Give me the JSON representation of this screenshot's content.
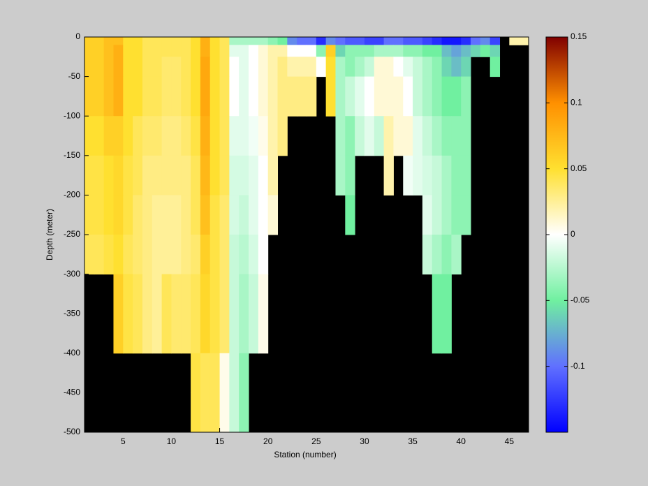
{
  "chart_data": {
    "type": "heatmap",
    "xlabel": "Station (number)",
    "ylabel": "Depth (meter)",
    "xlim": [
      1,
      47
    ],
    "ylim": [
      -500,
      0
    ],
    "xticks": [
      5,
      10,
      15,
      20,
      25,
      30,
      35,
      40,
      45
    ],
    "yticks": [
      -500,
      -450,
      -400,
      -350,
      -300,
      -250,
      -200,
      -150,
      -100,
      -50,
      0
    ],
    "clim": [
      -0.15,
      0.15
    ],
    "cticks": [
      -0.1,
      -0.05,
      0,
      0.05,
      0.1,
      0.15
    ],
    "colormap": [
      "#0000ff",
      "#6070ff",
      "#70f0a0",
      "#ffffff",
      "#ffe030",
      "#ff9000",
      "#800000"
    ],
    "background_color": "#000000",
    "x_edges": [
      1,
      2,
      3,
      4,
      5,
      6,
      7,
      8,
      9,
      10,
      11,
      12,
      13,
      14,
      15,
      16,
      17,
      18,
      19,
      20,
      21,
      22,
      23,
      24,
      25,
      26,
      27,
      28,
      29,
      30,
      31,
      32,
      33,
      34,
      35,
      36,
      37,
      38,
      39,
      40,
      41,
      42,
      43,
      44,
      45,
      46,
      47
    ],
    "y_edges": [
      0,
      -10,
      -25,
      -50,
      -100,
      -150,
      -200,
      -250,
      -300,
      -400,
      -450,
      -500
    ],
    "z": [
      [
        0.06,
        0.06,
        0.07,
        0.07,
        0.05,
        0.05,
        0.04,
        0.04,
        0.04,
        0.04,
        0.04,
        0.05,
        0.08,
        0.05,
        0.04,
        -0.03,
        -0.03,
        -0.03,
        -0.03,
        -0.04,
        -0.05,
        -0.09,
        -0.1,
        -0.1,
        -0.13,
        -0.09,
        -0.1,
        -0.11,
        -0.11,
        -0.12,
        -0.12,
        -0.1,
        -0.1,
        -0.11,
        -0.11,
        -0.12,
        -0.13,
        -0.14,
        -0.14,
        -0.13,
        -0.1,
        -0.09,
        -0.12,
        null,
        0.02,
        0.02
      ],
      [
        0.06,
        0.06,
        0.07,
        0.08,
        0.05,
        0.05,
        0.04,
        0.04,
        0.04,
        0.04,
        0.04,
        0.05,
        0.08,
        0.05,
        0.04,
        -0.01,
        -0.01,
        0.0,
        0.01,
        0.02,
        0.02,
        0.0,
        0.0,
        0.0,
        -0.04,
        0.06,
        -0.06,
        -0.04,
        -0.04,
        -0.04,
        -0.03,
        -0.03,
        -0.03,
        -0.04,
        -0.04,
        -0.05,
        -0.05,
        -0.07,
        -0.08,
        -0.07,
        -0.06,
        -0.05,
        -0.06,
        null,
        null,
        null
      ],
      [
        0.06,
        0.06,
        0.07,
        0.08,
        0.05,
        0.05,
        0.04,
        0.04,
        0.035,
        0.035,
        0.04,
        0.05,
        0.085,
        0.05,
        0.04,
        0.0,
        -0.01,
        0.0,
        0.01,
        0.02,
        0.03,
        0.02,
        0.02,
        0.02,
        0.0,
        0.05,
        -0.03,
        -0.04,
        -0.03,
        -0.02,
        0.01,
        0.01,
        0.0,
        -0.01,
        -0.02,
        -0.03,
        -0.04,
        -0.06,
        -0.07,
        -0.06,
        null,
        null,
        -0.05,
        null,
        null,
        null
      ],
      [
        0.06,
        0.06,
        0.07,
        0.08,
        0.05,
        0.05,
        0.04,
        0.04,
        0.035,
        0.035,
        0.04,
        0.05,
        0.085,
        0.05,
        0.04,
        0.0,
        -0.01,
        0.0,
        0.01,
        0.02,
        0.03,
        0.03,
        0.03,
        0.03,
        null,
        0.05,
        -0.03,
        -0.02,
        -0.01,
        0.0,
        0.01,
        0.01,
        0.01,
        0.0,
        -0.02,
        -0.03,
        -0.04,
        -0.05,
        -0.05,
        -0.04,
        null,
        null,
        null,
        null,
        null,
        null
      ],
      [
        0.05,
        0.05,
        0.06,
        0.06,
        0.05,
        0.04,
        0.035,
        0.035,
        0.03,
        0.03,
        0.035,
        0.045,
        0.08,
        0.05,
        0.04,
        -0.01,
        -0.01,
        -0.005,
        0.005,
        0.02,
        0.03,
        null,
        null,
        null,
        null,
        null,
        -0.03,
        -0.04,
        -0.02,
        -0.01,
        -0.02,
        0.02,
        0.01,
        0.01,
        -0.01,
        -0.02,
        -0.03,
        -0.04,
        -0.04,
        -0.04,
        null,
        null,
        null,
        null,
        null,
        null
      ],
      [
        0.045,
        0.045,
        0.05,
        0.055,
        0.045,
        0.04,
        0.03,
        0.03,
        0.03,
        0.03,
        0.03,
        0.04,
        0.075,
        0.05,
        0.04,
        -0.015,
        -0.015,
        -0.01,
        0.0,
        0.02,
        null,
        null,
        null,
        null,
        null,
        null,
        -0.03,
        -0.04,
        null,
        null,
        null,
        0.02,
        null,
        -0.005,
        -0.01,
        -0.015,
        -0.02,
        -0.03,
        -0.04,
        -0.04,
        null,
        null,
        null,
        null,
        null,
        null
      ],
      [
        0.045,
        0.045,
        0.05,
        0.055,
        0.045,
        0.035,
        0.03,
        0.025,
        0.025,
        0.025,
        0.03,
        0.04,
        0.07,
        0.045,
        0.035,
        -0.015,
        -0.02,
        -0.01,
        0.0,
        0.01,
        null,
        null,
        null,
        null,
        null,
        null,
        null,
        -0.05,
        null,
        null,
        null,
        null,
        null,
        null,
        null,
        -0.01,
        -0.02,
        -0.03,
        -0.04,
        -0.04,
        null,
        null,
        null,
        null,
        null,
        null
      ],
      [
        0.04,
        0.04,
        0.045,
        0.05,
        0.04,
        0.035,
        0.03,
        0.025,
        0.025,
        0.025,
        0.03,
        0.035,
        0.06,
        0.045,
        0.035,
        -0.02,
        -0.025,
        -0.015,
        0.0,
        null,
        null,
        null,
        null,
        null,
        null,
        null,
        null,
        null,
        null,
        null,
        null,
        null,
        null,
        null,
        null,
        -0.02,
        -0.03,
        -0.04,
        -0.03,
        null,
        null,
        null,
        null,
        null,
        null,
        null
      ],
      [
        null,
        null,
        null,
        0.06,
        0.045,
        0.04,
        0.03,
        0.025,
        0.04,
        0.035,
        0.035,
        0.04,
        0.055,
        0.045,
        0.035,
        -0.02,
        -0.03,
        -0.02,
        0.005,
        null,
        null,
        null,
        null,
        null,
        null,
        null,
        null,
        null,
        null,
        null,
        null,
        null,
        null,
        null,
        null,
        null,
        -0.05,
        -0.05,
        null,
        null,
        null,
        null,
        null,
        null,
        null,
        null
      ],
      [
        null,
        null,
        null,
        null,
        null,
        null,
        null,
        null,
        null,
        null,
        null,
        0.045,
        0.04,
        0.04,
        0.005,
        -0.02,
        -0.04,
        null,
        null,
        null,
        null,
        null,
        null,
        null,
        null,
        null,
        null,
        null,
        null,
        null,
        null,
        null,
        null,
        null,
        null,
        null,
        null,
        null,
        null,
        null,
        null,
        null,
        null,
        null,
        null,
        null
      ],
      [
        null,
        null,
        null,
        null,
        null,
        null,
        null,
        null,
        null,
        null,
        null,
        0.045,
        0.04,
        0.04,
        0.005,
        -0.02,
        -0.04,
        null,
        null,
        null,
        null,
        null,
        null,
        null,
        null,
        null,
        null,
        null,
        null,
        null,
        null,
        null,
        null,
        null,
        null,
        null,
        null,
        null,
        null,
        null,
        null,
        null,
        null,
        null,
        null,
        null
      ]
    ]
  }
}
